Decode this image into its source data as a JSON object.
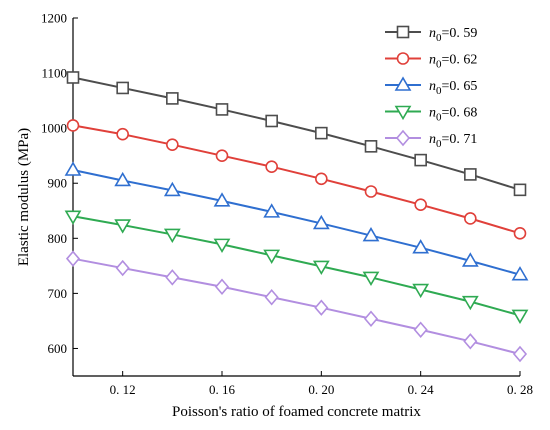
{
  "chart_data": {
    "type": "line",
    "xlabel": "Poisson's ratio of foamed concrete matrix",
    "ylabel": "Elastic modulus (MPa)",
    "xlim": [
      0.1,
      0.28
    ],
    "ylim": [
      550,
      1200
    ],
    "x_ticks": [
      0.12,
      0.16,
      0.2,
      0.24,
      0.28
    ],
    "x_tick_labels": [
      "0. 12",
      "0. 16",
      "0. 20",
      "0. 24",
      "0. 28"
    ],
    "y_ticks": [
      600,
      700,
      800,
      900,
      1000,
      1100,
      1200
    ],
    "y_tick_labels": [
      "600",
      "700",
      "800",
      "900",
      "1000",
      "1100",
      "1200"
    ],
    "grid": false,
    "legend_position": "top-right",
    "x": [
      0.1,
      0.12,
      0.14,
      0.16,
      0.18,
      0.2,
      0.22,
      0.24,
      0.26,
      0.28
    ],
    "series": [
      {
        "name_symbol": "n",
        "name_subscript": "0",
        "name_value": "=0. 59",
        "color": "#4d4d4d",
        "marker": "square",
        "values": [
          1092,
          1073,
          1054,
          1034,
          1013,
          991,
          967,
          942,
          916,
          888
        ]
      },
      {
        "name_symbol": "n",
        "name_subscript": "0",
        "name_value": "=0. 62",
        "color": "#e0403a",
        "marker": "circle",
        "values": [
          1005,
          989,
          970,
          950,
          930,
          908,
          885,
          861,
          836,
          809
        ]
      },
      {
        "name_symbol": "n",
        "name_subscript": "0",
        "name_value": "=0. 65",
        "color": "#2f6fd0",
        "marker": "triangle-up",
        "values": [
          924,
          905,
          887,
          868,
          848,
          827,
          805,
          783,
          759,
          734
        ]
      },
      {
        "name_symbol": "n",
        "name_subscript": "0",
        "name_value": "=0. 68",
        "color": "#2faa52",
        "marker": "triangle-down",
        "values": [
          840,
          824,
          807,
          789,
          769,
          749,
          729,
          707,
          685,
          660
        ]
      },
      {
        "name_symbol": "n",
        "name_subscript": "0",
        "name_value": "=0. 71",
        "color": "#b28ee0",
        "marker": "diamond",
        "values": [
          763,
          746,
          729,
          712,
          693,
          674,
          654,
          634,
          613,
          590
        ]
      }
    ]
  }
}
